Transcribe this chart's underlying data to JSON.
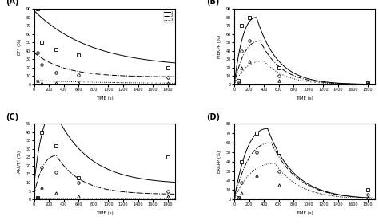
{
  "panel_A": {
    "label": "(A)",
    "ylabel": "EF* (%)",
    "xlabel": "TIME (s)",
    "xlim": [
      0,
      1900
    ],
    "ylim": [
      0,
      90
    ],
    "yticks": [
      0,
      10,
      20,
      30,
      40,
      50,
      60,
      70,
      80,
      90
    ],
    "xticks": [
      0,
      200,
      400,
      600,
      800,
      1000,
      1200,
      1400,
      1600,
      1800
    ],
    "lines": [
      {
        "start": 88,
        "decay": 0.0013,
        "baseline": 20
      },
      {
        "start": 38,
        "decay": 0.0025,
        "baseline": 9
      },
      {
        "start": 5,
        "decay": 0.001,
        "baseline": 1
      }
    ],
    "line_styles": [
      "-",
      "-.",
      ":"
    ],
    "markers_sq": [
      50,
      100,
      300,
      600,
      1800
    ],
    "data_sq": [
      90,
      50,
      42,
      35,
      20
    ],
    "markers_ci": [
      50,
      100,
      300,
      600,
      1800
    ],
    "data_ci": [
      38,
      24,
      14,
      11,
      9
    ],
    "markers_tr": [
      50,
      100,
      300,
      600,
      1800
    ],
    "data_tr": [
      5,
      2,
      2,
      2,
      2
    ]
  },
  "panel_B": {
    "label": "(B)",
    "ylabel": "MEKPP (%)",
    "xlabel": "TIME (s)",
    "xlim": [
      0,
      1900
    ],
    "ylim": [
      0,
      90
    ],
    "yticks": [
      0,
      10,
      20,
      30,
      40,
      50,
      60,
      70,
      80,
      90
    ],
    "xticks": [
      0,
      200,
      400,
      600,
      800,
      1000,
      1200,
      1400,
      1600,
      1800
    ],
    "peak_t": [
      300,
      350,
      400
    ],
    "peak_v": [
      80,
      52,
      28
    ],
    "decay": [
      0.0035,
      0.0035,
      0.0035
    ],
    "line_styles": [
      "-",
      "-.",
      ":"
    ],
    "markers_sq": [
      50,
      100,
      200,
      600,
      1800
    ],
    "data_sq": [
      5,
      70,
      80,
      20,
      2
    ],
    "markers_ci": [
      50,
      100,
      200,
      600,
      1800
    ],
    "data_ci": [
      2,
      40,
      52,
      10,
      1
    ],
    "markers_tr": [
      50,
      100,
      200,
      600,
      1800
    ],
    "data_tr": [
      1,
      20,
      28,
      5,
      0.5
    ]
  },
  "panel_C": {
    "label": "(C)",
    "ylabel": "Akt/T* (%)",
    "xlabel": "TIME (s)",
    "xlim": [
      0,
      1900
    ],
    "ylim": [
      0,
      45
    ],
    "yticks": [
      0,
      5,
      10,
      15,
      20,
      25,
      30,
      35,
      40,
      45
    ],
    "xticks": [
      0,
      200,
      400,
      600,
      800,
      1000,
      1200,
      1400,
      1600,
      1800
    ],
    "peak_t": [
      280,
      300,
      320
    ],
    "peak_v": [
      43,
      23,
      0
    ],
    "decay": [
      0.0022,
      0.003,
      0.001
    ],
    "baseline": [
      9,
      3,
      0.5
    ],
    "line_styles": [
      "-",
      "-.",
      ":"
    ],
    "markers_sq": [
      50,
      100,
      300,
      600,
      1800
    ],
    "data_sq": [
      1,
      40,
      32,
      13,
      25
    ],
    "markers_ci": [
      50,
      100,
      300,
      600,
      1800
    ],
    "data_ci": [
      1,
      19,
      16,
      10,
      5
    ],
    "markers_tr": [
      50,
      100,
      300,
      600,
      1800
    ],
    "data_tr": [
      1,
      7,
      4,
      2,
      2
    ]
  },
  "panel_D": {
    "label": "(D)",
    "ylabel": "ERKPP (%)",
    "xlabel": "TIME (s)",
    "xlim": [
      0,
      1900
    ],
    "ylim": [
      0,
      80
    ],
    "yticks": [
      0,
      10,
      20,
      30,
      40,
      50,
      60,
      70,
      80
    ],
    "xticks": [
      0,
      200,
      400,
      600,
      800,
      1000,
      1200,
      1400,
      1600,
      1800
    ],
    "peak_t": [
      450,
      500,
      550
    ],
    "peak_v": [
      75,
      60,
      38
    ],
    "decay": [
      0.0028,
      0.0028,
      0.003
    ],
    "line_styles": [
      "-",
      "-.",
      ":"
    ],
    "markers_sq": [
      50,
      100,
      300,
      600,
      1800
    ],
    "data_sq": [
      2,
      40,
      70,
      50,
      10
    ],
    "markers_ci": [
      50,
      100,
      300,
      600,
      1800
    ],
    "data_ci": [
      1,
      18,
      50,
      30,
      5
    ],
    "markers_tr": [
      50,
      100,
      300,
      600,
      1800
    ],
    "data_tr": [
      0.5,
      7,
      25,
      15,
      2
    ]
  },
  "legend_entries": [
    {
      "label": "1",
      "style": "-"
    },
    {
      "label": "2",
      "style": "-."
    },
    {
      "label": "3",
      "style": ":"
    }
  ]
}
